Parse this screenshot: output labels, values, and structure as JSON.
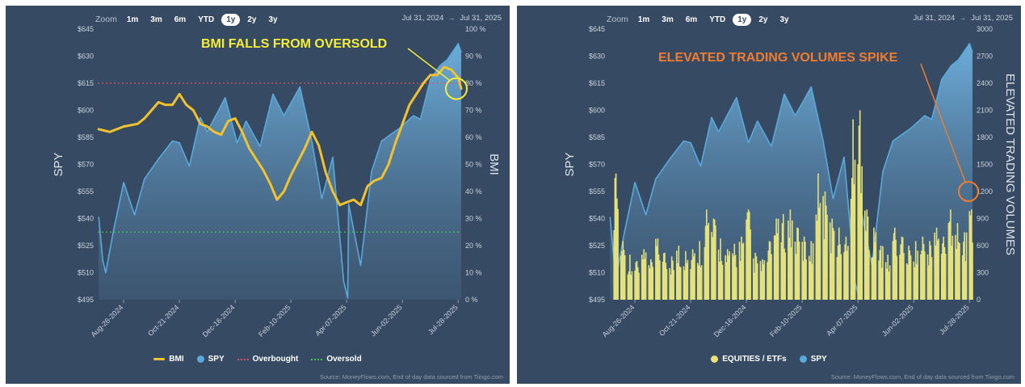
{
  "zoom": {
    "label": "Zoom",
    "options": [
      "1m",
      "3m",
      "6m",
      "YTD",
      "1y",
      "2y",
      "3y"
    ],
    "active": "1y"
  },
  "range": {
    "from": "Jul 31, 2024",
    "to": "Jul 31, 2025",
    "arrow": "→"
  },
  "source": "Source: MoneyFlows.com, End of day data sourced from Tiingo.com",
  "colors": {
    "panel": "#364b63",
    "bmi": "#f2c12e",
    "spy": "#5aa9dc",
    "overbought": "#d9546a",
    "oversold": "#4cc24f",
    "volume": "#e6e27a",
    "annot_left": "#f5ee38",
    "annot_right": "#f07c30"
  },
  "chart_data": [
    {
      "type": "line",
      "x_tick_labels": [
        "Aug-26-2024",
        "Oct-21-2024",
        "Dec-16-2024",
        "Feb-10-2025",
        "Apr-07-2025",
        "Jun-02-2025",
        "Jul-28-2025"
      ],
      "xlim": [
        "2024-07-31",
        "2025-07-31"
      ],
      "ylabel": "SPY",
      "y2label": "BMI",
      "y_tick_labels": [
        "$645",
        "$630",
        "$615",
        "$600",
        "$585",
        "$570",
        "$555",
        "$540",
        "$525",
        "$510",
        "$495"
      ],
      "ylim": [
        495,
        645
      ],
      "y2_tick_labels": [
        "100 %",
        "90 %",
        "80 %",
        "70 %",
        "60 %",
        "50 %",
        "40 %",
        "30 %",
        "20 %",
        "10 %",
        "0 %"
      ],
      "y2lim": [
        0,
        100
      ],
      "series": [
        {
          "name": "BMI",
          "axis": "right",
          "points": [
            [
              "2024-08-01",
              63
            ],
            [
              "2024-08-12",
              62
            ],
            [
              "2024-08-26",
              64
            ],
            [
              "2024-09-09",
              65
            ],
            [
              "2024-09-16",
              67
            ],
            [
              "2024-09-23",
              70
            ],
            [
              "2024-09-30",
              73
            ],
            [
              "2024-10-07",
              72
            ],
            [
              "2024-10-14",
              72
            ],
            [
              "2024-10-21",
              76
            ],
            [
              "2024-10-28",
              72
            ],
            [
              "2024-11-04",
              70
            ],
            [
              "2024-11-11",
              65
            ],
            [
              "2024-11-18",
              64
            ],
            [
              "2024-11-25",
              62
            ],
            [
              "2024-12-02",
              61
            ],
            [
              "2024-12-09",
              66
            ],
            [
              "2024-12-16",
              67
            ],
            [
              "2024-12-23",
              62
            ],
            [
              "2024-12-30",
              56
            ],
            [
              "2025-01-06",
              52
            ],
            [
              "2025-01-13",
              48
            ],
            [
              "2025-01-20",
              43
            ],
            [
              "2025-01-27",
              37
            ],
            [
              "2025-02-03",
              40
            ],
            [
              "2025-02-10",
              46
            ],
            [
              "2025-02-17",
              51
            ],
            [
              "2025-02-24",
              56
            ],
            [
              "2025-03-03",
              62
            ],
            [
              "2025-03-10",
              57
            ],
            [
              "2025-03-17",
              47
            ],
            [
              "2025-03-24",
              40
            ],
            [
              "2025-03-31",
              35
            ],
            [
              "2025-04-07",
              36
            ],
            [
              "2025-04-14",
              37
            ],
            [
              "2025-04-21",
              35
            ],
            [
              "2025-04-28",
              42
            ],
            [
              "2025-05-05",
              44
            ],
            [
              "2025-05-12",
              45
            ],
            [
              "2025-05-19",
              50
            ],
            [
              "2025-05-26",
              58
            ],
            [
              "2025-06-02",
              65
            ],
            [
              "2025-06-09",
              72
            ],
            [
              "2025-06-16",
              76
            ],
            [
              "2025-06-23",
              80
            ],
            [
              "2025-06-30",
              83
            ],
            [
              "2025-07-07",
              83
            ],
            [
              "2025-07-14",
              86
            ],
            [
              "2025-07-21",
              85
            ],
            [
              "2025-07-28",
              82
            ],
            [
              "2025-07-31",
              78
            ]
          ]
        },
        {
          "name": "SPY",
          "axis": "left",
          "points": [
            [
              "2024-08-01",
              541
            ],
            [
              "2024-08-05",
              517
            ],
            [
              "2024-08-08",
              510
            ],
            [
              "2024-08-15",
              531
            ],
            [
              "2024-08-26",
              560
            ],
            [
              "2024-09-06",
              542
            ],
            [
              "2024-09-16",
              562
            ],
            [
              "2024-09-30",
              573
            ],
            [
              "2024-10-14",
              583
            ],
            [
              "2024-10-21",
              582
            ],
            [
              "2024-10-31",
              569
            ],
            [
              "2024-11-11",
              596
            ],
            [
              "2024-11-18",
              588
            ],
            [
              "2024-12-06",
              607
            ],
            [
              "2024-12-18",
              582
            ],
            [
              "2024-12-27",
              594
            ],
            [
              "2025-01-10",
              580
            ],
            [
              "2025-01-23",
              609
            ],
            [
              "2025-02-03",
              597
            ],
            [
              "2025-02-19",
              613
            ],
            [
              "2025-03-03",
              583
            ],
            [
              "2025-03-13",
              551
            ],
            [
              "2025-03-24",
              574
            ],
            [
              "2025-04-04",
              505
            ],
            [
              "2025-04-08",
              496
            ],
            [
              "2025-04-09",
              548
            ],
            [
              "2025-04-21",
              514
            ],
            [
              "2025-05-02",
              566
            ],
            [
              "2025-05-12",
              583
            ],
            [
              "2025-05-30",
              590
            ],
            [
              "2025-06-13",
              597
            ],
            [
              "2025-06-20",
              595
            ],
            [
              "2025-06-30",
              617
            ],
            [
              "2025-07-10",
              625
            ],
            [
              "2025-07-17",
              628
            ],
            [
              "2025-07-28",
              637
            ],
            [
              "2025-07-31",
              632
            ]
          ]
        },
        {
          "name": "Overbought",
          "axis": "right",
          "value": 80
        },
        {
          "name": "Oversold",
          "axis": "right",
          "value": 25
        }
      ],
      "annotations": [
        {
          "text": "BMI FALLS FROM OVERSOLD",
          "target": [
            "2025-07-31",
            78
          ]
        }
      ],
      "legend": [
        "BMI",
        "SPY",
        "Overbought",
        "Oversold"
      ],
      "legend_position": "bottom-center"
    },
    {
      "type": "bar",
      "x_tick_labels": [
        "Aug-26-2024",
        "Oct-21-2024",
        "Dec-16-2024",
        "Feb-10-2025",
        "Apr-07-2025",
        "Jun-02-2025",
        "Jul-28-2025"
      ],
      "xlim": [
        "2024-07-31",
        "2025-07-31"
      ],
      "ylabel": "SPY",
      "y2label": "ELEVATED TRADING VOLUMES",
      "y_tick_labels": [
        "$645",
        "$630",
        "$615",
        "$600",
        "$585",
        "$570",
        "$555",
        "$540",
        "$525",
        "$510",
        "$495"
      ],
      "ylim": [
        495,
        645
      ],
      "y2_tick_labels": [
        "3000",
        "2700",
        "2400",
        "2100",
        "1800",
        "1500",
        "1200",
        "900",
        "600",
        "300",
        "0"
      ],
      "y2lim": [
        0,
        3000
      ],
      "series": [
        {
          "name": "EQUITIES / ETFs",
          "axis": "right",
          "kind": "bar",
          "values_by_week": [
            [
              "2024-08-05",
              1400
            ],
            [
              "2024-08-12",
              650
            ],
            [
              "2024-08-19",
              500
            ],
            [
              "2024-08-26",
              430
            ],
            [
              "2024-09-02",
              560
            ],
            [
              "2024-09-09",
              450
            ],
            [
              "2024-09-16",
              680
            ],
            [
              "2024-09-23",
              520
            ],
            [
              "2024-09-30",
              480
            ],
            [
              "2024-10-07",
              600
            ],
            [
              "2024-10-14",
              540
            ],
            [
              "2024-10-21",
              560
            ],
            [
              "2024-10-28",
              650
            ],
            [
              "2024-11-04",
              1000
            ],
            [
              "2024-11-11",
              900
            ],
            [
              "2024-11-18",
              680
            ],
            [
              "2024-11-25",
              560
            ],
            [
              "2024-12-02",
              620
            ],
            [
              "2024-12-09",
              700
            ],
            [
              "2024-12-16",
              1000
            ],
            [
              "2024-12-23",
              520
            ],
            [
              "2024-12-30",
              450
            ],
            [
              "2025-01-06",
              650
            ],
            [
              "2025-01-13",
              900
            ],
            [
              "2025-01-20",
              950
            ],
            [
              "2025-01-27",
              1000
            ],
            [
              "2025-02-03",
              800
            ],
            [
              "2025-02-10",
              700
            ],
            [
              "2025-02-17",
              650
            ],
            [
              "2025-02-24",
              1400
            ],
            [
              "2025-03-03",
              1200
            ],
            [
              "2025-03-10",
              900
            ],
            [
              "2025-03-17",
              800
            ],
            [
              "2025-03-24",
              700
            ],
            [
              "2025-03-31",
              2000
            ],
            [
              "2025-04-07",
              2100
            ],
            [
              "2025-04-14",
              1000
            ],
            [
              "2025-04-21",
              800
            ],
            [
              "2025-04-28",
              600
            ],
            [
              "2025-05-05",
              500
            ],
            [
              "2025-05-12",
              800
            ],
            [
              "2025-05-19",
              700
            ],
            [
              "2025-05-26",
              600
            ],
            [
              "2025-06-02",
              650
            ],
            [
              "2025-06-09",
              700
            ],
            [
              "2025-06-16",
              650
            ],
            [
              "2025-06-23",
              800
            ],
            [
              "2025-06-30",
              700
            ],
            [
              "2025-07-07",
              1000
            ],
            [
              "2025-07-14",
              850
            ],
            [
              "2025-07-21",
              750
            ],
            [
              "2025-07-28",
              1000
            ]
          ]
        },
        {
          "name": "SPY",
          "axis": "left",
          "kind": "area",
          "points": [
            [
              "2024-08-01",
              541
            ],
            [
              "2024-08-05",
              517
            ],
            [
              "2024-08-08",
              510
            ],
            [
              "2024-08-15",
              531
            ],
            [
              "2024-08-26",
              560
            ],
            [
              "2024-09-06",
              542
            ],
            [
              "2024-09-16",
              562
            ],
            [
              "2024-09-30",
              573
            ],
            [
              "2024-10-14",
              583
            ],
            [
              "2024-10-21",
              582
            ],
            [
              "2024-10-31",
              569
            ],
            [
              "2024-11-11",
              596
            ],
            [
              "2024-11-18",
              588
            ],
            [
              "2024-12-06",
              607
            ],
            [
              "2024-12-18",
              582
            ],
            [
              "2024-12-27",
              594
            ],
            [
              "2025-01-10",
              580
            ],
            [
              "2025-01-23",
              609
            ],
            [
              "2025-02-03",
              597
            ],
            [
              "2025-02-19",
              613
            ],
            [
              "2025-03-03",
              583
            ],
            [
              "2025-03-13",
              551
            ],
            [
              "2025-03-24",
              574
            ],
            [
              "2025-04-04",
              505
            ],
            [
              "2025-04-08",
              496
            ],
            [
              "2025-04-09",
              548
            ],
            [
              "2025-04-21",
              514
            ],
            [
              "2025-05-02",
              566
            ],
            [
              "2025-05-12",
              583
            ],
            [
              "2025-05-30",
              590
            ],
            [
              "2025-06-13",
              597
            ],
            [
              "2025-06-20",
              595
            ],
            [
              "2025-06-30",
              617
            ],
            [
              "2025-07-10",
              625
            ],
            [
              "2025-07-17",
              628
            ],
            [
              "2025-07-28",
              637
            ],
            [
              "2025-07-31",
              632
            ]
          ]
        }
      ],
      "annotations": [
        {
          "text": "ELEVATED TRADING VOLUMES SPIKE",
          "target": [
            "2025-07-31",
            1200
          ]
        }
      ],
      "legend": [
        "EQUITIES / ETFs",
        "SPY"
      ],
      "legend_position": "bottom-center"
    }
  ]
}
